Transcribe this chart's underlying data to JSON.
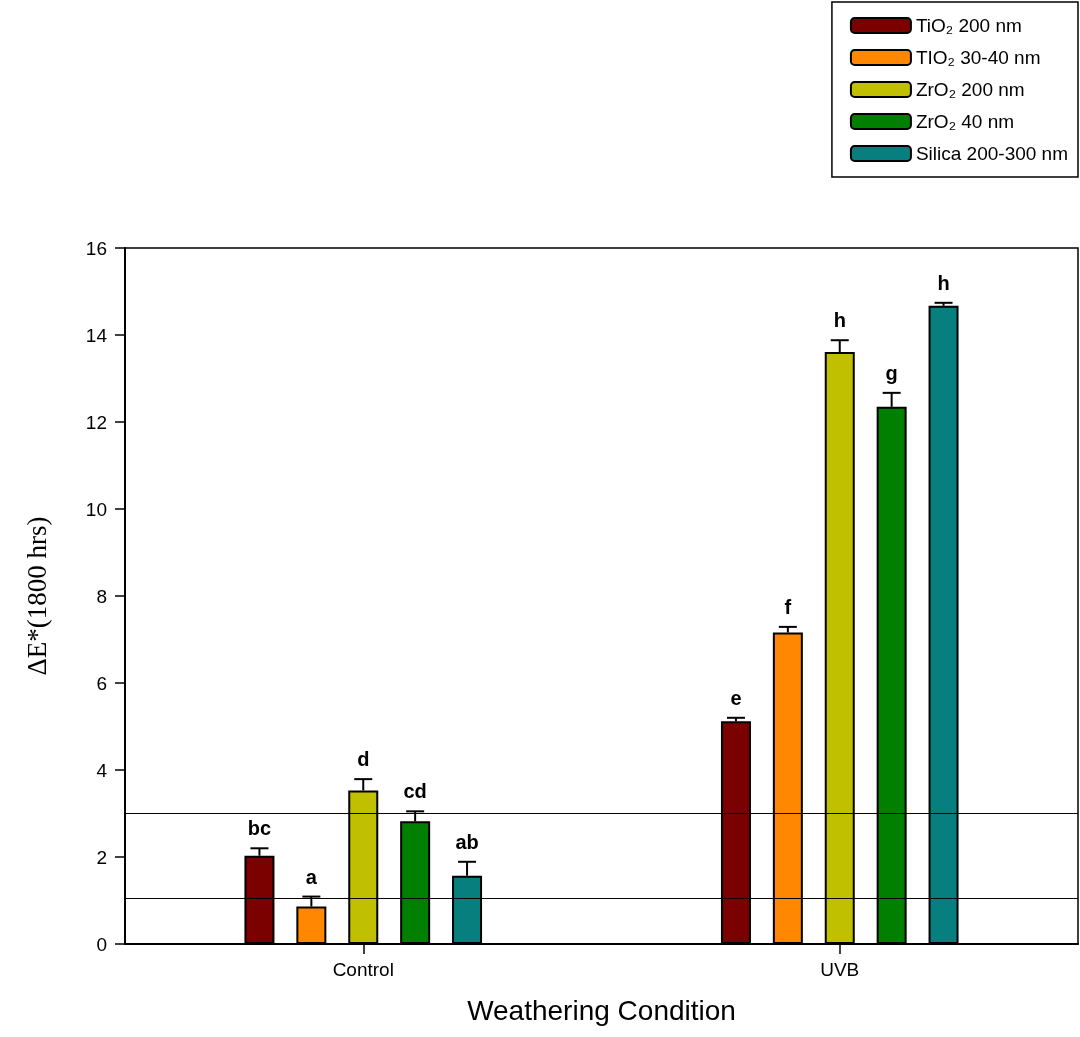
{
  "chart_data": {
    "type": "bar",
    "xlabel": "Weathering Condition",
    "ylabel": "ΔE*(1800 hrs)",
    "categories": [
      "Control",
      "UVB"
    ],
    "series": [
      {
        "name": "TiO₂ 200 nm",
        "color": "#7b0000",
        "values": [
          2.03,
          5.12
        ],
        "errors": [
          [
            2.03,
            2.2
          ],
          [
            5.12,
            5.2
          ]
        ],
        "value_labels": [
          "bc",
          "e"
        ]
      },
      {
        "name": "TIO₂ 30-40 nm",
        "color": "#ff8800",
        "values": [
          0.86,
          7.16
        ],
        "errors": [
          [
            0.86,
            1.09
          ],
          [
            7.16,
            7.29
          ]
        ],
        "value_labels": [
          "a",
          "f"
        ]
      },
      {
        "name": "ZrO₂ 200 nm",
        "color": "#c0c000",
        "values": [
          3.53,
          13.61
        ],
        "errors": [
          [
            3.53,
            3.79
          ],
          [
            13.61,
            13.88
          ]
        ],
        "value_labels": [
          "d",
          "h"
        ]
      },
      {
        "name": "ZrO₂ 40 nm",
        "color": "#007f00",
        "values": [
          2.82,
          12.35
        ],
        "errors": [
          [
            2.82,
            3.05
          ],
          [
            12.35,
            12.67
          ]
        ],
        "value_labels": [
          "cd",
          "g"
        ]
      },
      {
        "name": "Silica 200-300 nm",
        "color": "#087f7f",
        "values": [
          1.57,
          14.67
        ],
        "errors": [
          [
            1.57,
            1.89
          ],
          [
            14.67,
            14.74
          ]
        ],
        "value_labels": [
          "ab",
          "h"
        ]
      }
    ],
    "ylim": [
      0,
      16
    ],
    "yticks": [
      0,
      2,
      4,
      6,
      8,
      10,
      12,
      14,
      16
    ],
    "ref_lines": [
      {
        "axis": "y",
        "value": 3.0
      },
      {
        "axis": "y",
        "value": 1.05
      }
    ],
    "legend": "top right",
    "grid": false
  }
}
